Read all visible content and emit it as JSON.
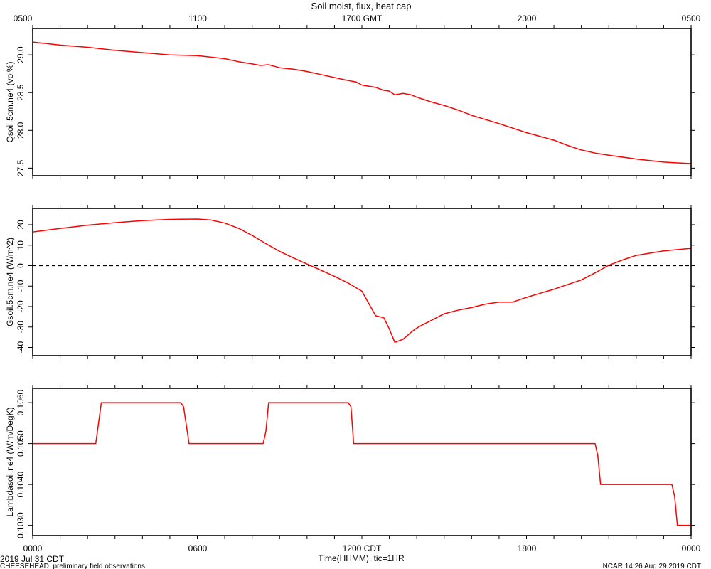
{
  "title": "Soil moist, flux, heat cap",
  "top_axis": {
    "labels": [
      "0500",
      "1100",
      "1700 GMT",
      "2300",
      "0500"
    ]
  },
  "bottom_axis": {
    "labels": [
      "0000",
      "0600",
      "1200 CDT",
      "1800",
      "0000"
    ],
    "label": "Time(HHMM), tic=1HR"
  },
  "footer": {
    "date": "2019 Jul 31 CDT",
    "project": "CHEESEHEAD: preliminary field observations",
    "credit": "NCAR 14:26 Aug 29 2019 CDT"
  },
  "colors": {
    "line": "#ff0000",
    "axis": "#000000",
    "zero_line": "#000000"
  },
  "chart_data": [
    {
      "type": "line",
      "ylabel": "Qsoil.5cm.ne4 (vol%)",
      "ylim": [
        27.4,
        29.35
      ],
      "yticks": [
        27.5,
        28.0,
        28.5,
        29.0
      ],
      "ytick_labels": [
        "27.5",
        "28.0",
        "28.5",
        "29.0"
      ],
      "x": [
        0,
        0.5,
        1,
        2,
        3,
        4,
        5,
        6,
        7,
        7.5,
        8,
        8.3,
        8.6,
        9,
        9.5,
        10,
        10.5,
        11,
        11.5,
        11.8,
        12,
        12.5,
        12.8,
        13,
        13.2,
        13.5,
        13.8,
        14,
        14.5,
        15,
        15.5,
        16,
        17,
        18,
        19,
        19.5,
        20,
        20.5,
        21,
        22,
        23,
        23.5,
        24
      ],
      "values": [
        29.17,
        29.15,
        29.13,
        29.1,
        29.06,
        29.03,
        29.0,
        28.99,
        28.95,
        28.91,
        28.88,
        28.86,
        28.87,
        28.83,
        28.81,
        28.78,
        28.74,
        28.7,
        28.66,
        28.64,
        28.6,
        28.57,
        28.53,
        28.52,
        28.47,
        28.49,
        28.47,
        28.44,
        28.38,
        28.33,
        28.27,
        28.2,
        28.09,
        27.97,
        27.87,
        27.8,
        27.74,
        27.7,
        27.67,
        27.62,
        27.58,
        27.57,
        27.56
      ]
    },
    {
      "type": "line",
      "ylabel": "Gsoil.5cm.ne4 (W/m^2)",
      "ylim": [
        -44,
        28
      ],
      "yticks": [
        -40,
        -30,
        -20,
        -10,
        0,
        10,
        20
      ],
      "ytick_labels": [
        "-40",
        "-30",
        "-20",
        "-10",
        "0",
        "10",
        "20"
      ],
      "zero_line": true,
      "x": [
        0,
        1,
        2,
        3,
        4,
        5,
        6,
        6.5,
        7,
        7.5,
        8,
        8.5,
        9,
        9.5,
        10,
        10.5,
        11,
        11.5,
        12,
        12.5,
        12.8,
        13,
        13.2,
        13.5,
        13.8,
        14,
        14.2,
        14.5,
        15,
        15.5,
        16,
        16.5,
        17,
        17.5,
        18,
        19,
        20,
        20.5,
        21,
        21.5,
        22,
        23,
        24
      ],
      "values": [
        16.5,
        18.2,
        19.8,
        21.0,
        22.0,
        22.6,
        22.8,
        22.3,
        20.8,
        18.3,
        14.8,
        10.8,
        7.0,
        3.8,
        0.8,
        -2.2,
        -5.2,
        -8.5,
        -12.5,
        -24.5,
        -25.5,
        -31.0,
        -37.5,
        -36.0,
        -32.5,
        -30.5,
        -29.0,
        -27.0,
        -23.5,
        -21.8,
        -20.5,
        -18.8,
        -17.8,
        -17.8,
        -15.5,
        -11.5,
        -7.0,
        -3.5,
        0.2,
        2.8,
        5.0,
        7.2,
        8.5
      ]
    },
    {
      "type": "line",
      "ylabel": "Lambdasoil.ne4 (W/m/DegK)",
      "ylim": [
        0.10275,
        0.10635
      ],
      "yticks": [
        0.103,
        0.104,
        0.105,
        0.106
      ],
      "ytick_labels": [
        "0.1030",
        "0.1040",
        "0.1050",
        "0.1060"
      ],
      "x": [
        0,
        2.3,
        2.5,
        5.4,
        5.5,
        5.7,
        8.4,
        8.5,
        8.6,
        11.5,
        11.6,
        11.7,
        20.5,
        20.6,
        20.7,
        23.3,
        23.4,
        23.5,
        24
      ],
      "values": [
        0.105,
        0.105,
        0.106,
        0.106,
        0.1059,
        0.105,
        0.105,
        0.1053,
        0.106,
        0.106,
        0.1059,
        0.105,
        0.105,
        0.1047,
        0.104,
        0.104,
        0.1037,
        0.103,
        0.103
      ]
    }
  ]
}
